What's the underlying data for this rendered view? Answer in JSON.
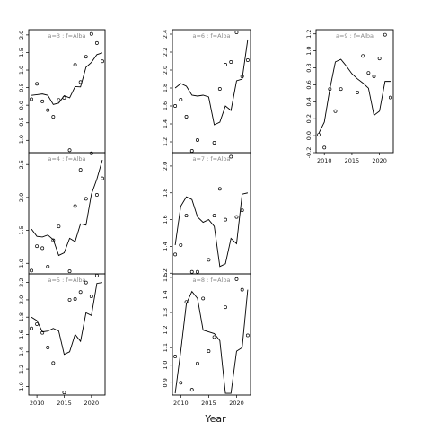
{
  "figure": {
    "xlabel": "Year"
  },
  "chart_data": [
    {
      "type": "scatter",
      "title": "a=3 : f=Alba",
      "xlim": [
        2008.5,
        2022.5
      ],
      "ylim": [
        -1.35,
        2.15
      ],
      "xticks": [],
      "yticks": [
        -1.0,
        -0.5,
        0.0,
        0.5,
        1.0,
        1.5,
        2.0
      ],
      "points": [
        [
          2009,
          0.17
        ],
        [
          2010,
          0.61
        ],
        [
          2011,
          0.11
        ],
        [
          2012,
          -0.14
        ],
        [
          2013,
          -0.33
        ],
        [
          2014,
          0.15
        ],
        [
          2015,
          0.21
        ],
        [
          2016,
          -1.28
        ],
        [
          2017,
          1.15
        ],
        [
          2018,
          0.66
        ],
        [
          2019,
          1.38
        ],
        [
          2020,
          2.03
        ],
        [
          2021,
          1.77
        ],
        [
          2022,
          1.25
        ]
      ],
      "fit": [
        [
          2009,
          0.28
        ],
        [
          2010,
          0.3
        ],
        [
          2011,
          0.32
        ],
        [
          2012,
          0.28
        ],
        [
          2013,
          0.02
        ],
        [
          2014,
          0.06
        ],
        [
          2015,
          0.27
        ],
        [
          2016,
          0.21
        ],
        [
          2017,
          0.53
        ],
        [
          2018,
          0.52
        ],
        [
          2019,
          1.08
        ],
        [
          2020,
          1.22
        ],
        [
          2021,
          1.44
        ],
        [
          2022,
          1.49
        ]
      ]
    },
    {
      "type": "scatter",
      "title": "a=6 : f=Alba",
      "xlim": [
        2008.5,
        2022.5
      ],
      "ylim": [
        1.08,
        2.45
      ],
      "xticks": [],
      "yticks": [
        1.2,
        1.4,
        1.6,
        1.8,
        2.0,
        2.2,
        2.4
      ],
      "points": [
        [
          2009,
          1.6
        ],
        [
          2010,
          1.67
        ],
        [
          2011,
          1.48
        ],
        [
          2012,
          1.1
        ],
        [
          2013,
          1.22
        ],
        [
          2016,
          1.19
        ],
        [
          2017,
          1.79
        ],
        [
          2018,
          2.06
        ],
        [
          2019,
          2.09
        ],
        [
          2020,
          2.42
        ],
        [
          2021,
          1.93
        ],
        [
          2022,
          2.11
        ]
      ],
      "fit": [
        [
          2009,
          1.8
        ],
        [
          2010,
          1.85
        ],
        [
          2011,
          1.82
        ],
        [
          2012,
          1.72
        ],
        [
          2013,
          1.71
        ],
        [
          2014,
          1.72
        ],
        [
          2015,
          1.7
        ],
        [
          2016,
          1.39
        ],
        [
          2017,
          1.42
        ],
        [
          2018,
          1.6
        ],
        [
          2019,
          1.55
        ],
        [
          2020,
          1.88
        ],
        [
          2021,
          1.9
        ],
        [
          2022,
          2.34
        ]
      ]
    },
    {
      "type": "scatter",
      "title": "a=9 : f=Alba",
      "xlim": [
        2008.5,
        2022.5
      ],
      "ylim": [
        -0.2,
        1.25
      ],
      "xticks": [
        2010,
        2015,
        2020
      ],
      "yticks": [
        -0.2,
        0.0,
        0.2,
        0.4,
        0.6,
        0.8,
        1.0,
        1.2
      ],
      "points": [
        [
          2009,
          0.01
        ],
        [
          2010,
          -0.14
        ],
        [
          2011,
          0.55
        ],
        [
          2012,
          0.29
        ],
        [
          2013,
          0.55
        ],
        [
          2016,
          0.51
        ],
        [
          2017,
          0.94
        ],
        [
          2018,
          0.74
        ],
        [
          2019,
          0.7
        ],
        [
          2020,
          0.91
        ],
        [
          2021,
          1.19
        ],
        [
          2022,
          0.45
        ]
      ],
      "fit": [
        [
          2009,
          0.03
        ],
        [
          2010,
          0.16
        ],
        [
          2011,
          0.55
        ],
        [
          2012,
          0.87
        ],
        [
          2013,
          0.9
        ],
        [
          2014,
          0.82
        ],
        [
          2015,
          0.73
        ],
        [
          2016,
          0.67
        ],
        [
          2017,
          0.62
        ],
        [
          2018,
          0.56
        ],
        [
          2019,
          0.24
        ],
        [
          2020,
          0.29
        ],
        [
          2021,
          0.64
        ],
        [
          2022,
          0.64
        ]
      ]
    },
    {
      "type": "scatter",
      "title": "a=4 : f=Alba",
      "xlim": [
        2008.5,
        2022.5
      ],
      "ylim": [
        0.84,
        2.68
      ],
      "xticks": [],
      "yticks": [
        1.0,
        1.5,
        2.0,
        2.5
      ],
      "points": [
        [
          2009,
          0.89
        ],
        [
          2010,
          1.26
        ],
        [
          2011,
          1.23
        ],
        [
          2012,
          0.95
        ],
        [
          2013,
          1.35
        ],
        [
          2014,
          1.56
        ],
        [
          2016,
          0.88
        ],
        [
          2017,
          1.87
        ],
        [
          2018,
          2.42
        ],
        [
          2019,
          1.98
        ],
        [
          2020,
          2.67
        ],
        [
          2021,
          2.04
        ],
        [
          2022,
          2.29
        ]
      ],
      "fit": [
        [
          2009,
          1.52
        ],
        [
          2010,
          1.41
        ],
        [
          2011,
          1.4
        ],
        [
          2012,
          1.43
        ],
        [
          2013,
          1.36
        ],
        [
          2014,
          1.12
        ],
        [
          2015,
          1.16
        ],
        [
          2016,
          1.38
        ],
        [
          2017,
          1.33
        ],
        [
          2018,
          1.6
        ],
        [
          2019,
          1.58
        ],
        [
          2020,
          2.05
        ],
        [
          2021,
          2.28
        ],
        [
          2022,
          2.57
        ]
      ]
    },
    {
      "type": "scatter",
      "title": "a=7 : f=Alba",
      "xlim": [
        2008.5,
        2022.5
      ],
      "ylim": [
        1.195,
        2.1
      ],
      "xticks": [],
      "yticks": [
        1.2,
        1.4,
        1.6,
        1.8,
        2.0
      ],
      "points": [
        [
          2009,
          1.34
        ],
        [
          2010,
          1.41
        ],
        [
          2011,
          1.63
        ],
        [
          2012,
          1.21
        ],
        [
          2013,
          1.21
        ],
        [
          2015,
          1.3
        ],
        [
          2016,
          1.63
        ],
        [
          2017,
          1.83
        ],
        [
          2018,
          1.6
        ],
        [
          2019,
          2.07
        ],
        [
          2020,
          1.62
        ],
        [
          2021,
          1.67
        ]
      ],
      "fit": [
        [
          2009,
          1.41
        ],
        [
          2010,
          1.7
        ],
        [
          2011,
          1.77
        ],
        [
          2012,
          1.75
        ],
        [
          2013,
          1.62
        ],
        [
          2014,
          1.58
        ],
        [
          2015,
          1.6
        ],
        [
          2016,
          1.55
        ],
        [
          2017,
          1.25
        ],
        [
          2018,
          1.27
        ],
        [
          2019,
          1.46
        ],
        [
          2020,
          1.42
        ],
        [
          2021,
          1.79
        ],
        [
          2022,
          1.8
        ]
      ]
    },
    {
      "type": "scatter",
      "title": "a=5 : f=Alba",
      "xlim": [
        2008.5,
        2022.5
      ],
      "ylim": [
        0.9,
        2.3
      ],
      "xticks": [
        2010,
        2015,
        2020
      ],
      "yticks": [
        1.0,
        1.2,
        1.4,
        1.6,
        1.8,
        2.0,
        2.2
      ],
      "points": [
        [
          2009,
          1.67
        ],
        [
          2010,
          1.72
        ],
        [
          2011,
          1.62
        ],
        [
          2012,
          1.45
        ],
        [
          2013,
          1.27
        ],
        [
          2015,
          0.93
        ],
        [
          2016,
          2.0
        ],
        [
          2017,
          2.01
        ],
        [
          2018,
          2.09
        ],
        [
          2019,
          2.2
        ],
        [
          2020,
          2.04
        ],
        [
          2021,
          2.28
        ]
      ],
      "fit": [
        [
          2009,
          1.8
        ],
        [
          2010,
          1.76
        ],
        [
          2011,
          1.63
        ],
        [
          2012,
          1.64
        ],
        [
          2013,
          1.67
        ],
        [
          2014,
          1.64
        ],
        [
          2015,
          1.37
        ],
        [
          2016,
          1.4
        ],
        [
          2017,
          1.6
        ],
        [
          2018,
          1.52
        ],
        [
          2019,
          1.85
        ],
        [
          2020,
          1.82
        ],
        [
          2021,
          2.19
        ],
        [
          2022,
          2.2
        ]
      ]
    },
    {
      "type": "scatter",
      "title": "a=8 : f=Alba",
      "xlim": [
        2008.5,
        2022.5
      ],
      "ylim": [
        0.83,
        1.52
      ],
      "xticks": [
        2010,
        2015,
        2020
      ],
      "yticks": [
        0.9,
        1.0,
        1.1,
        1.2,
        1.3,
        1.4,
        1.5
      ],
      "points": [
        [
          2009,
          1.05
        ],
        [
          2010,
          0.9
        ],
        [
          2011,
          1.36
        ],
        [
          2012,
          0.86
        ],
        [
          2013,
          1.01
        ],
        [
          2014,
          1.38
        ],
        [
          2015,
          1.08
        ],
        [
          2016,
          1.16
        ],
        [
          2018,
          1.33
        ],
        [
          2020,
          1.49
        ],
        [
          2021,
          1.43
        ],
        [
          2022,
          1.17
        ]
      ],
      "fit": [
        [
          2009,
          0.84
        ],
        [
          2010,
          1.08
        ],
        [
          2011,
          1.35
        ],
        [
          2012,
          1.42
        ],
        [
          2013,
          1.38
        ],
        [
          2014,
          1.2
        ],
        [
          2015,
          1.19
        ],
        [
          2016,
          1.18
        ],
        [
          2017,
          1.14
        ],
        [
          2018,
          0.84
        ],
        [
          2019,
          0.84
        ],
        [
          2020,
          1.08
        ],
        [
          2021,
          1.1
        ],
        [
          2022,
          1.43
        ]
      ]
    }
  ]
}
